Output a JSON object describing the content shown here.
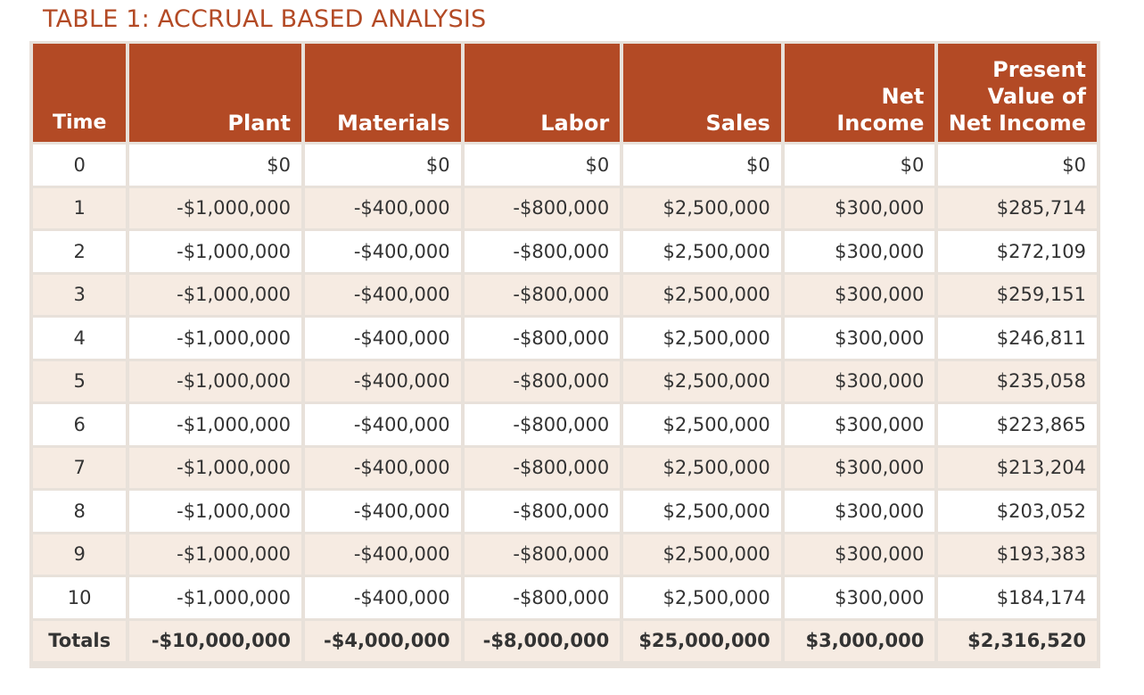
{
  "title": "TABLE 1: ACCRUAL BASED ANALYSIS",
  "columns": [
    "Time",
    "Plant",
    "Materials",
    "Labor",
    "Sales",
    "Net Income",
    "Present Value of Net Income"
  ],
  "header_lines": {
    "time": [
      "Time"
    ],
    "plant": [
      "Plant"
    ],
    "materials": [
      "Materials"
    ],
    "labor": [
      "Labor"
    ],
    "sales": [
      "Sales"
    ],
    "net_income": [
      "Net",
      "Income"
    ],
    "pv": [
      "Present",
      "Value of",
      "Net Income"
    ]
  },
  "rows": [
    [
      "0",
      "$0",
      "$0",
      "$0",
      "$0",
      "$0",
      "$0"
    ],
    [
      "1",
      "-$1,000,000",
      "-$400,000",
      "-$800,000",
      "$2,500,000",
      "$300,000",
      "$285,714"
    ],
    [
      "2",
      "-$1,000,000",
      "-$400,000",
      "-$800,000",
      "$2,500,000",
      "$300,000",
      "$272,109"
    ],
    [
      "3",
      "-$1,000,000",
      "-$400,000",
      "-$800,000",
      "$2,500,000",
      "$300,000",
      "$259,151"
    ],
    [
      "4",
      "-$1,000,000",
      "-$400,000",
      "-$800,000",
      "$2,500,000",
      "$300,000",
      "$246,811"
    ],
    [
      "5",
      "-$1,000,000",
      "-$400,000",
      "-$800,000",
      "$2,500,000",
      "$300,000",
      "$235,058"
    ],
    [
      "6",
      "-$1,000,000",
      "-$400,000",
      "-$800,000",
      "$2,500,000",
      "$300,000",
      "$223,865"
    ],
    [
      "7",
      "-$1,000,000",
      "-$400,000",
      "-$800,000",
      "$2,500,000",
      "$300,000",
      "$213,204"
    ],
    [
      "8",
      "-$1,000,000",
      "-$400,000",
      "-$800,000",
      "$2,500,000",
      "$300,000",
      "$203,052"
    ],
    [
      "9",
      "-$1,000,000",
      "-$400,000",
      "-$800,000",
      "$2,500,000",
      "$300,000",
      "$193,383"
    ],
    [
      "10",
      "-$1,000,000",
      "-$400,000",
      "-$800,000",
      "$2,500,000",
      "$300,000",
      "$184,174"
    ]
  ],
  "totals": [
    "Totals",
    "-$10,000,000",
    "-$4,000,000",
    "-$8,000,000",
    "$25,000,000",
    "$3,000,000",
    "$2,316,520"
  ],
  "colors": {
    "accent": "#b34a25",
    "row_alt": "#f6ebe2",
    "border": "#e8e1da"
  }
}
